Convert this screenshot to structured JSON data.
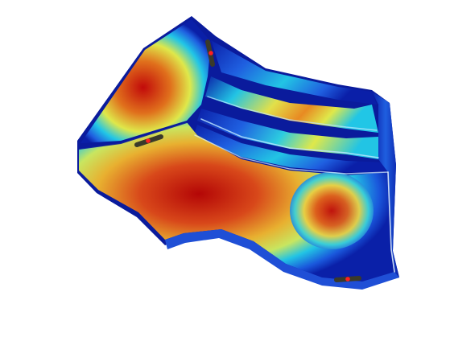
{
  "viewport": {
    "background": "#ffffff",
    "colormap": [
      "#0a1fa8",
      "#1f5fe0",
      "#21c6e6",
      "#dfe84a",
      "#e07a1e",
      "#c20a0a"
    ],
    "edge_color": "#08107a"
  },
  "markers": {
    "count": 3,
    "color": "#ff2020",
    "shaft_color": "#3a3a2a"
  }
}
